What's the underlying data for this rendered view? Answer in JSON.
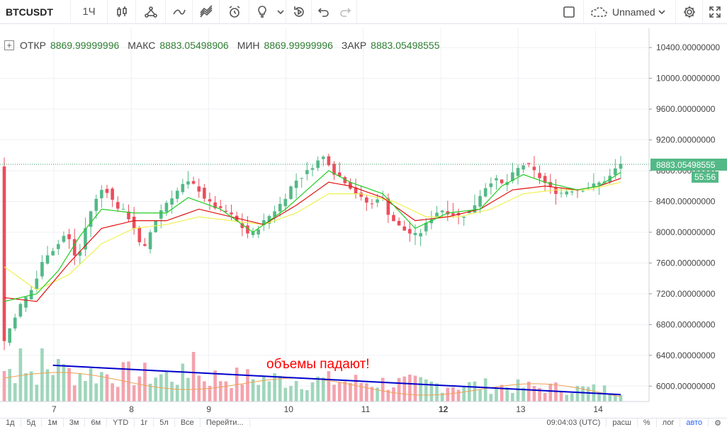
{
  "toolbar": {
    "symbol": "BTCUSDT",
    "interval": "1Ч",
    "layout_name": "Unnamed",
    "icons": [
      "candles-icon",
      "indicators-icon",
      "compare-icon",
      "templates-icon",
      "alert-icon",
      "ideas-icon",
      "replay-icon",
      "undo-icon",
      "redo-icon",
      "fullscreen-icon",
      "cloud-save-icon",
      "settings-icon",
      "expand-icon"
    ]
  },
  "legend": {
    "open_label": "ОТКР",
    "open": "8869.99999996",
    "high_label": "МАКС",
    "high": "8883.05498906",
    "low_label": "МИН",
    "low": "8869.99999996",
    "close_label": "ЗАКР",
    "close": "8883.05498555"
  },
  "annotation": {
    "text": "объемы падают!",
    "color": "#ff0000",
    "line_color": "#0000cc"
  },
  "bottombar": {
    "ranges": [
      "1д",
      "5д",
      "1м",
      "3м",
      "6м",
      "YTD",
      "1г",
      "5л",
      "Все"
    ],
    "goto": "Перейти...",
    "time": "09:04:03 (UTC)",
    "options": [
      "расш",
      "%",
      "лог",
      "авто"
    ]
  },
  "colors": {
    "up": "#53b987",
    "down": "#eb4d5c",
    "vol_up": "#9fd6bb",
    "vol_down": "#f4a3ad",
    "ma_fast": "#22cc22",
    "ma_mid": "#e01010",
    "ma_slow": "#f0f050",
    "vol_ma": "#f0a050"
  },
  "chart_data": {
    "type": "candlestick",
    "y_ticks": [
      "10400.00000000",
      "10000.00000000",
      "9600.00000000",
      "9200.00000000",
      "8800.00000000",
      "8400.00000000",
      "8000.00000000",
      "7600.00000000",
      "7200.00000000",
      "6800.00000000",
      "6400.00000000",
      "6000.00000000"
    ],
    "ylim": [
      5800,
      10650
    ],
    "x_ticks": [
      "7",
      "8",
      "9",
      "10",
      "11",
      "12",
      "13",
      "14"
    ],
    "last_price": "8883.05498555",
    "countdown": "55:56",
    "grid": true,
    "price_path": [
      [
        0,
        6500
      ],
      [
        3,
        7000
      ],
      [
        6,
        7300
      ],
      [
        8,
        7700
      ],
      [
        10,
        7800
      ],
      [
        12,
        8000
      ],
      [
        14,
        7600
      ],
      [
        16,
        8200
      ],
      [
        18,
        8500
      ],
      [
        19,
        8600
      ],
      [
        21,
        8350
      ],
      [
        23,
        8250
      ],
      [
        25,
        8000
      ],
      [
        26,
        7700
      ],
      [
        28,
        8100
      ],
      [
        30,
        8350
      ],
      [
        32,
        8500
      ],
      [
        34,
        8650
      ],
      [
        36,
        8600
      ],
      [
        38,
        8400
      ],
      [
        40,
        8300
      ],
      [
        42,
        8250
      ],
      [
        44,
        8100
      ],
      [
        46,
        7950
      ],
      [
        48,
        8100
      ],
      [
        50,
        8250
      ],
      [
        52,
        8400
      ],
      [
        54,
        8650
      ],
      [
        56,
        8750
      ],
      [
        58,
        8900
      ],
      [
        60,
        9000
      ],
      [
        61,
        8800
      ],
      [
        63,
        8700
      ],
      [
        65,
        8550
      ],
      [
        67,
        8400
      ],
      [
        69,
        8350
      ],
      [
        70,
        8550
      ],
      [
        71,
        8300
      ],
      [
        73,
        8100
      ],
      [
        75,
        8000
      ],
      [
        77,
        7950
      ],
      [
        79,
        8150
      ],
      [
        81,
        8300
      ],
      [
        83,
        8250
      ],
      [
        85,
        8200
      ],
      [
        87,
        8300
      ],
      [
        89,
        8550
      ],
      [
        91,
        8700
      ],
      [
        93,
        8600
      ],
      [
        95,
        8800
      ],
      [
        97,
        8900
      ],
      [
        99,
        8750
      ],
      [
        101,
        8600
      ],
      [
        103,
        8500
      ],
      [
        105,
        8550
      ],
      [
        107,
        8550
      ],
      [
        109,
        8600
      ],
      [
        111,
        8650
      ],
      [
        113,
        8750
      ],
      [
        114,
        8883
      ]
    ],
    "ma_fast": [
      [
        0,
        7100
      ],
      [
        6,
        7200
      ],
      [
        10,
        7500
      ],
      [
        14,
        7950
      ],
      [
        18,
        8300
      ],
      [
        24,
        8250
      ],
      [
        30,
        8250
      ],
      [
        34,
        8450
      ],
      [
        40,
        8300
      ],
      [
        46,
        8000
      ],
      [
        52,
        8300
      ],
      [
        56,
        8550
      ],
      [
        60,
        8800
      ],
      [
        64,
        8650
      ],
      [
        70,
        8500
      ],
      [
        76,
        8050
      ],
      [
        82,
        8250
      ],
      [
        88,
        8300
      ],
      [
        92,
        8600
      ],
      [
        96,
        8750
      ],
      [
        100,
        8650
      ],
      [
        106,
        8550
      ],
      [
        110,
        8600
      ],
      [
        114,
        8780
      ]
    ],
    "ma_mid": [
      [
        0,
        7150
      ],
      [
        6,
        7100
      ],
      [
        12,
        7600
      ],
      [
        18,
        8050
      ],
      [
        24,
        8150
      ],
      [
        30,
        8150
      ],
      [
        36,
        8300
      ],
      [
        42,
        8200
      ],
      [
        48,
        8100
      ],
      [
        54,
        8350
      ],
      [
        60,
        8650
      ],
      [
        64,
        8600
      ],
      [
        70,
        8450
      ],
      [
        76,
        8150
      ],
      [
        82,
        8200
      ],
      [
        88,
        8300
      ],
      [
        94,
        8550
      ],
      [
        100,
        8600
      ],
      [
        106,
        8550
      ],
      [
        110,
        8600
      ],
      [
        114,
        8700
      ]
    ],
    "ma_slow": [
      [
        0,
        7550
      ],
      [
        6,
        7250
      ],
      [
        12,
        7450
      ],
      [
        18,
        7850
      ],
      [
        24,
        8050
      ],
      [
        30,
        8100
      ],
      [
        36,
        8200
      ],
      [
        42,
        8150
      ],
      [
        48,
        8100
      ],
      [
        54,
        8250
      ],
      [
        60,
        8500
      ],
      [
        66,
        8500
      ],
      [
        72,
        8400
      ],
      [
        78,
        8200
      ],
      [
        84,
        8200
      ],
      [
        90,
        8300
      ],
      [
        96,
        8500
      ],
      [
        102,
        8550
      ],
      [
        108,
        8550
      ],
      [
        114,
        8650
      ]
    ],
    "volume_trend": [
      [
        9,
        6270
      ],
      [
        114,
        5890
      ]
    ]
  }
}
